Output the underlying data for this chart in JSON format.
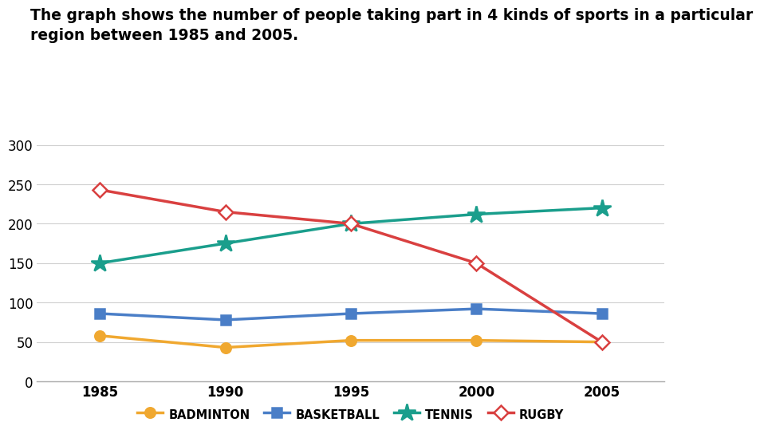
{
  "title_line1": "The graph shows the number of people taking part in 4 kinds of sports in a particular",
  "title_line2": "region between 1985 and 2005.",
  "years": [
    1985,
    1990,
    1995,
    2000,
    2005
  ],
  "series": [
    {
      "name": "BADMINTON",
      "values": [
        58,
        43,
        52,
        52,
        50
      ],
      "color": "#F0A830",
      "marker": "o",
      "marker_size": 9,
      "linewidth": 2.5,
      "filled": true
    },
    {
      "name": "BASKETBALL",
      "values": [
        86,
        78,
        86,
        92,
        86
      ],
      "color": "#4A7EC7",
      "marker": "s",
      "marker_size": 9,
      "linewidth": 2.5,
      "filled": true
    },
    {
      "name": "TENNIS",
      "values": [
        150,
        175,
        200,
        212,
        220
      ],
      "color": "#1A9E8C",
      "marker": "*",
      "marker_size": 16,
      "linewidth": 2.5,
      "filled": true
    },
    {
      "name": "RUGBY",
      "values": [
        243,
        215,
        200,
        150,
        50
      ],
      "color": "#D94040",
      "marker": "D",
      "marker_size": 9,
      "linewidth": 2.5,
      "filled": false
    }
  ],
  "ylim": [
    0,
    320
  ],
  "yticks": [
    0,
    50,
    100,
    150,
    200,
    250,
    300
  ],
  "xlim": [
    1982.5,
    2007.5
  ],
  "background_color": "#ffffff",
  "grid_color": "#d0d0d0",
  "title_fontsize": 13.5,
  "tick_fontsize": 12,
  "legend_fontsize": 10.5
}
